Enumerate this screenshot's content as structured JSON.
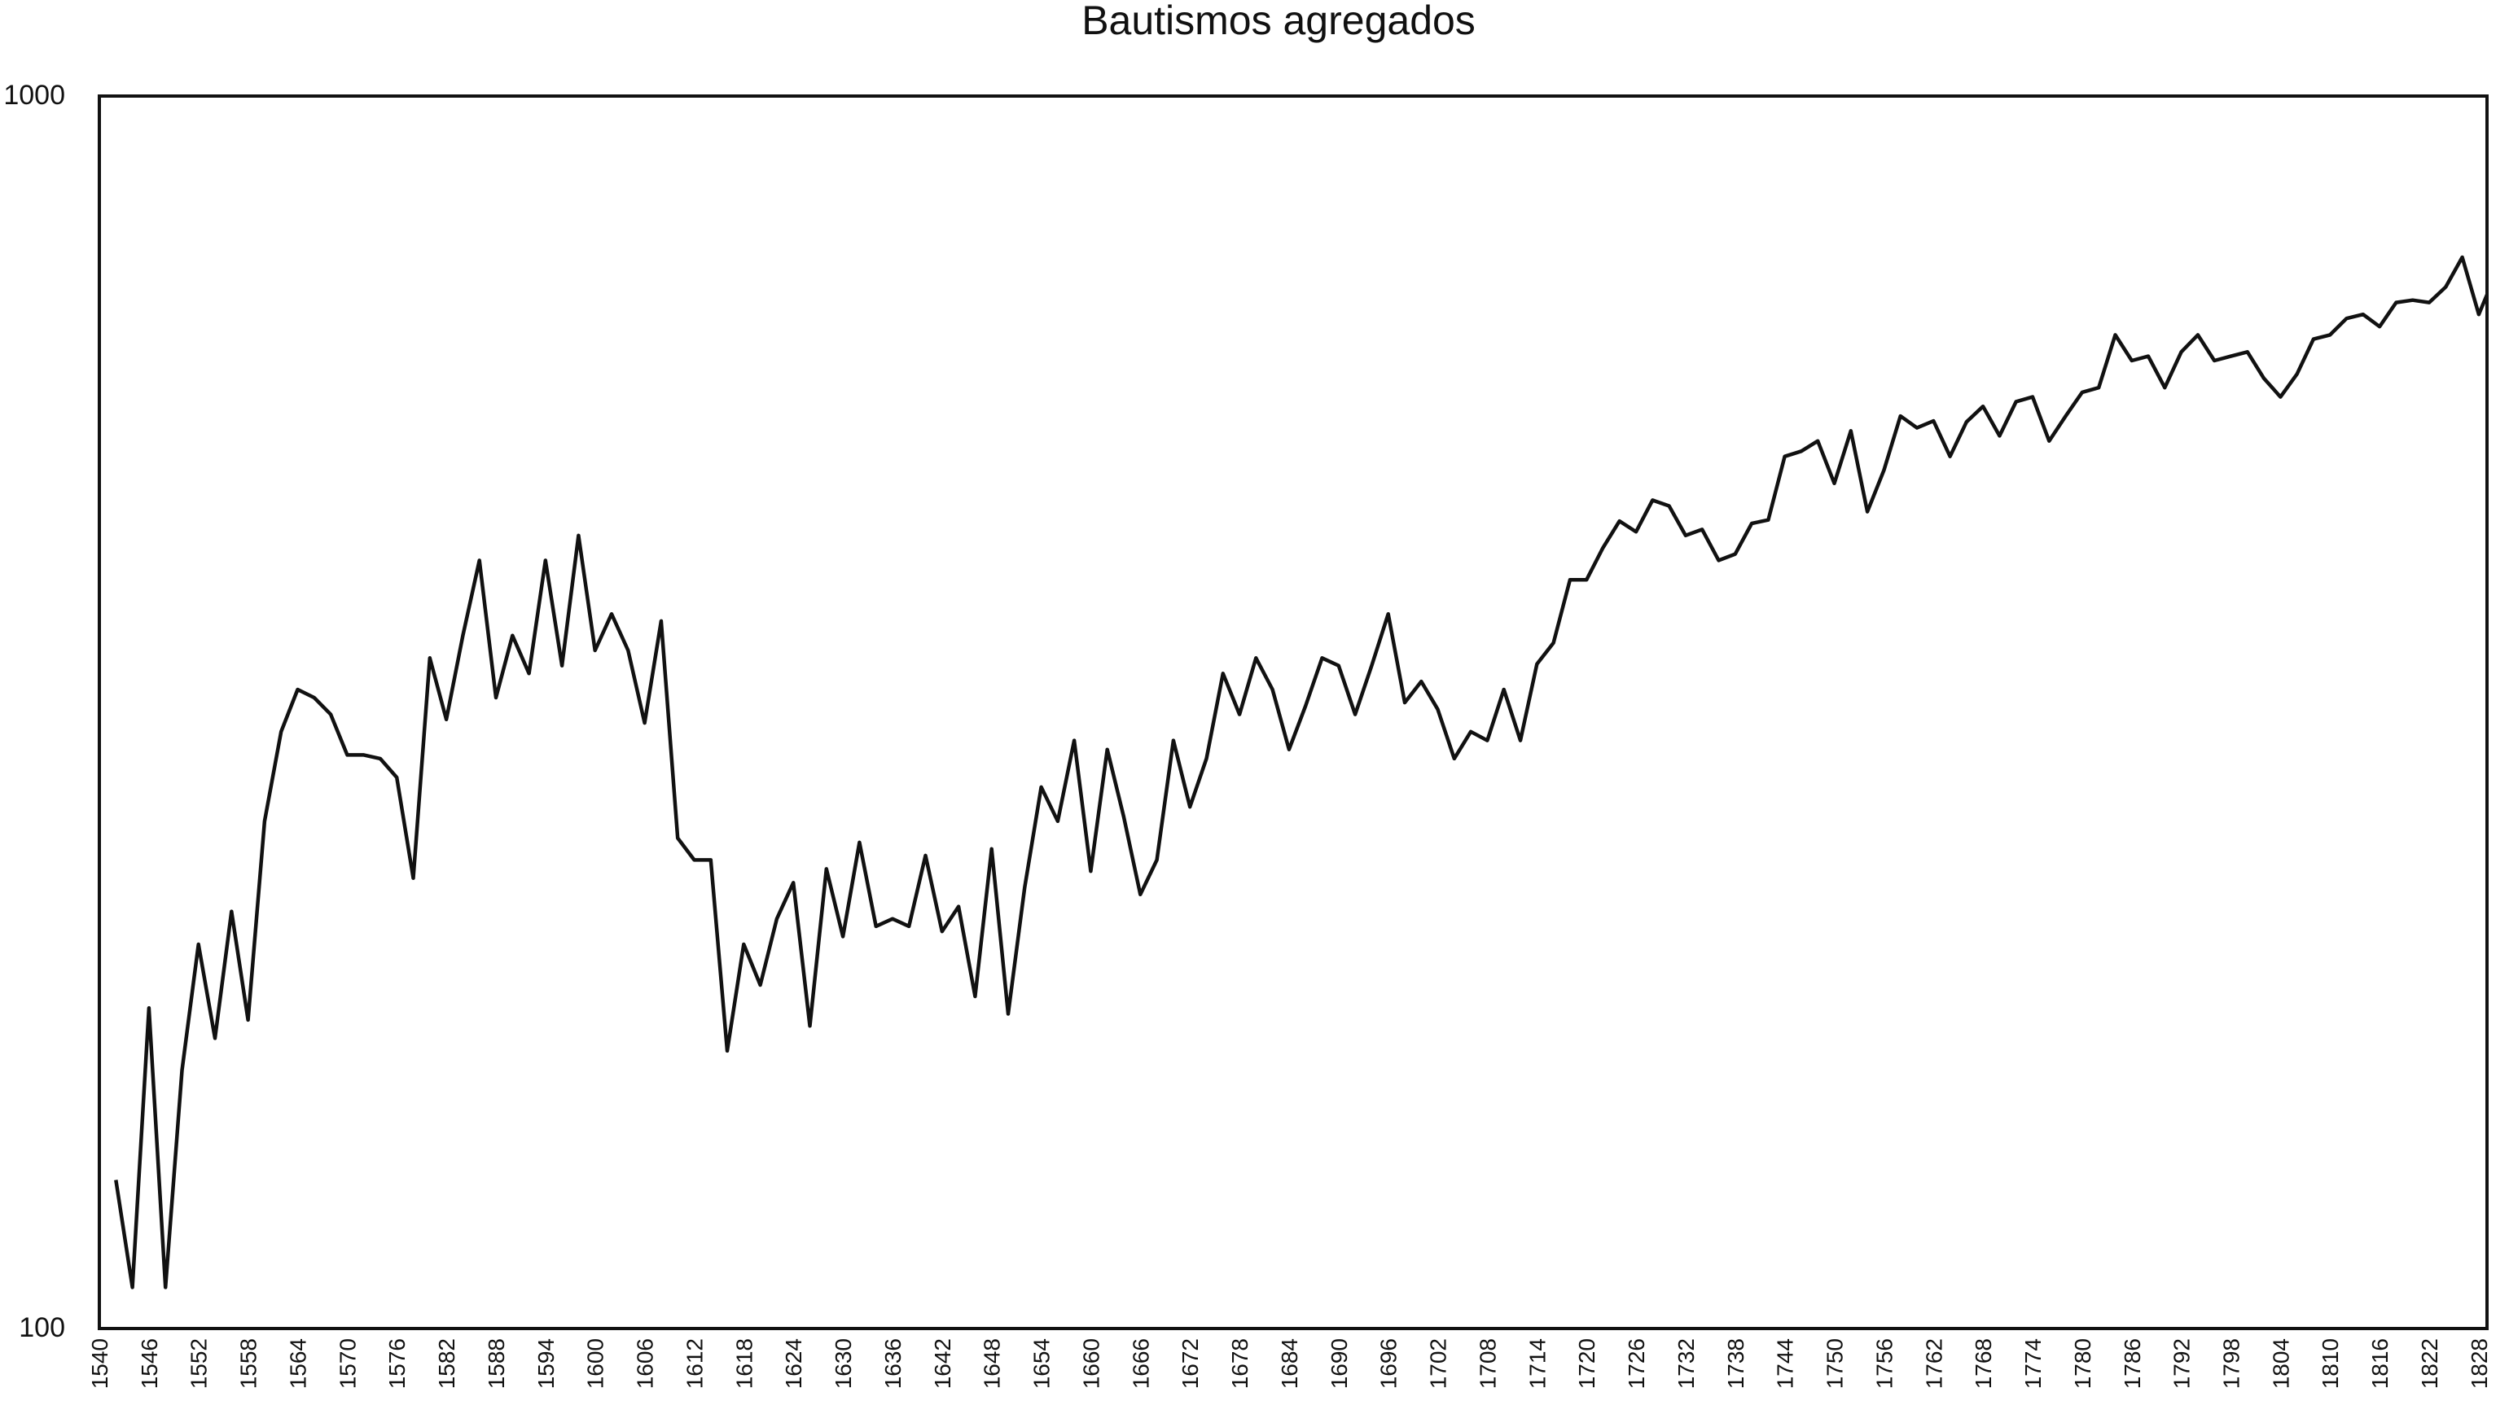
{
  "chart_data": {
    "type": "line",
    "title": "Bautismos agregados",
    "xlabel": "",
    "ylabel": "",
    "y_scale": "log",
    "ylim": [
      100,
      1000
    ],
    "y_ticks": [
      "1000",
      "100"
    ],
    "xlim": [
      1540,
      1829
    ],
    "x_tick_labels": [
      "1540",
      "1546",
      "1552",
      "1558",
      "1564",
      "1570",
      "1576",
      "1582",
      "1588",
      "1594",
      "1600",
      "1606",
      "1612",
      "1618",
      "1624",
      "1630",
      "1636",
      "1642",
      "1648",
      "1654",
      "1660",
      "1666",
      "1672",
      "1678",
      "1684",
      "1690",
      "1696",
      "1702",
      "1708",
      "1714",
      "1720",
      "1726",
      "1732",
      "1738",
      "1744",
      "1750",
      "1756",
      "1762",
      "1768",
      "1774",
      "1780",
      "1786",
      "1792",
      "1798",
      "1804",
      "1810",
      "1816",
      "1822",
      "1828"
    ],
    "grid": false,
    "legend": "none",
    "line_color": "#111111",
    "series": [
      {
        "x": [
          1542,
          1544,
          1546,
          1548,
          1550,
          1552,
          1554,
          1556,
          1558,
          1560,
          1562,
          1564,
          1566,
          1568,
          1570,
          1572,
          1574,
          1576,
          1578,
          1580,
          1582,
          1584,
          1586,
          1588,
          1590,
          1592,
          1594,
          1596,
          1598,
          1600,
          1602,
          1604,
          1606,
          1608,
          1610,
          1612,
          1614,
          1616,
          1618,
          1620,
          1622,
          1624,
          1626,
          1628,
          1630,
          1632,
          1634,
          1636,
          1638,
          1640,
          1642,
          1644,
          1646,
          1648,
          1650,
          1652,
          1654,
          1656,
          1658,
          1660,
          1662,
          1664,
          1666,
          1668,
          1670,
          1672,
          1674,
          1676,
          1678,
          1680,
          1682,
          1684,
          1686,
          1688,
          1690,
          1692,
          1694,
          1696,
          1698,
          1700,
          1702,
          1704,
          1706,
          1708,
          1710,
          1712,
          1714,
          1716,
          1718,
          1720,
          1722,
          1724,
          1726,
          1728,
          1730,
          1732,
          1734,
          1736,
          1738,
          1740,
          1742,
          1744,
          1746,
          1748,
          1750,
          1752,
          1754,
          1756,
          1758,
          1760,
          1762,
          1764,
          1766,
          1768,
          1770,
          1772,
          1774,
          1776,
          1778,
          1780,
          1782,
          1784,
          1786,
          1788,
          1790,
          1792,
          1794,
          1796,
          1798,
          1800,
          1802,
          1804,
          1806,
          1808,
          1810,
          1812,
          1814,
          1816,
          1818,
          1820,
          1822,
          1824,
          1826,
          1828,
          1829
        ],
        "y": [
          132,
          108,
          182,
          108,
          162,
          205,
          172,
          218,
          178,
          258,
          305,
          330,
          325,
          315,
          292,
          292,
          290,
          280,
          232,
          350,
          312,
          365,
          420,
          325,
          365,
          340,
          420,
          345,
          440,
          355,
          380,
          355,
          310,
          375,
          250,
          240,
          240,
          168,
          205,
          190,
          215,
          230,
          176,
          236,
          208,
          248,
          212,
          215,
          212,
          242,
          210,
          220,
          186,
          245,
          180,
          228,
          275,
          258,
          300,
          235,
          295,
          260,
          225,
          240,
          300,
          265,
          290,
          340,
          315,
          350,
          330,
          295,
          320,
          350,
          345,
          315,
          345,
          380,
          322,
          335,
          318,
          290,
          305,
          300,
          330,
          300,
          346,
          360,
          405,
          405,
          430,
          452,
          443,
          470,
          465,
          440,
          445,
          420,
          425,
          450,
          453,
          510,
          515,
          525,
          485,
          535,
          460,
          497,
          550,
          538,
          545,
          510,
          544,
          560,
          530,
          565,
          570,
          525,
          550,
          575,
          580,
          640,
          610,
          615,
          580,
          620,
          640,
          610,
          615,
          620,
          590,
          570,
          595,
          635,
          640,
          660,
          665,
          650,
          680,
          683,
          680,
          700,
          740,
          665,
          690
        ]
      }
    ]
  }
}
